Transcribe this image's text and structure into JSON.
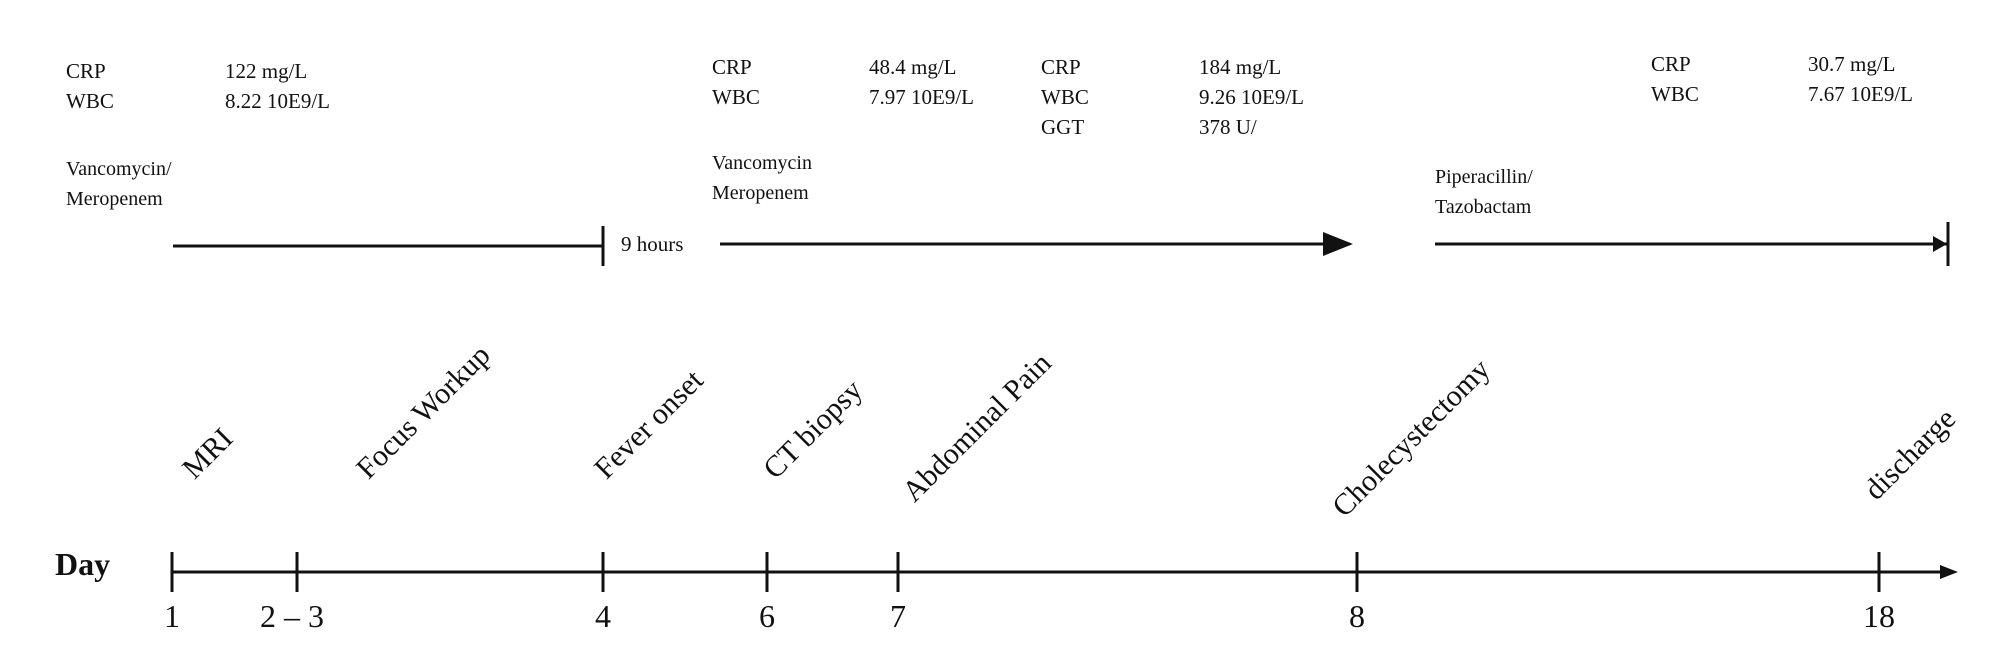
{
  "axis_label": "Day",
  "days": [
    "1",
    "2 – 3",
    "4",
    "6",
    "7",
    "8",
    "18"
  ],
  "events": [
    "MRI",
    "Focus Workup",
    "Fever onset",
    "CT biopsy",
    "Abdominal Pain",
    "Cholecystectomy",
    "discharge"
  ],
  "labs": [
    {
      "rows": [
        {
          "name": "CRP",
          "value": "122 mg/L"
        },
        {
          "name": "WBC",
          "value": "8.22 10E9/L"
        }
      ]
    },
    {
      "rows": [
        {
          "name": "CRP",
          "value": "48.4 mg/L"
        },
        {
          "name": "WBC",
          "value": "7.97 10E9/L"
        }
      ]
    },
    {
      "rows": [
        {
          "name": "CRP",
          "value": "184 mg/L"
        },
        {
          "name": "WBC",
          "value": "9.26 10E9/L"
        },
        {
          "name": "GGT",
          "value": "378 U/"
        }
      ]
    },
    {
      "rows": [
        {
          "name": "CRP",
          "value": "30.7 mg/L"
        },
        {
          "name": "WBC",
          "value": "7.67 10E9/L"
        }
      ]
    }
  ],
  "antibiotics": [
    {
      "line1": "Vancomycin/",
      "line2": "Meropenem"
    },
    {
      "line1": "Vancomycin",
      "line2": "Meropenem"
    },
    {
      "line1": "Piperacillin/",
      "line2": "Tazobactam"
    }
  ],
  "interval_label": "9 hours"
}
